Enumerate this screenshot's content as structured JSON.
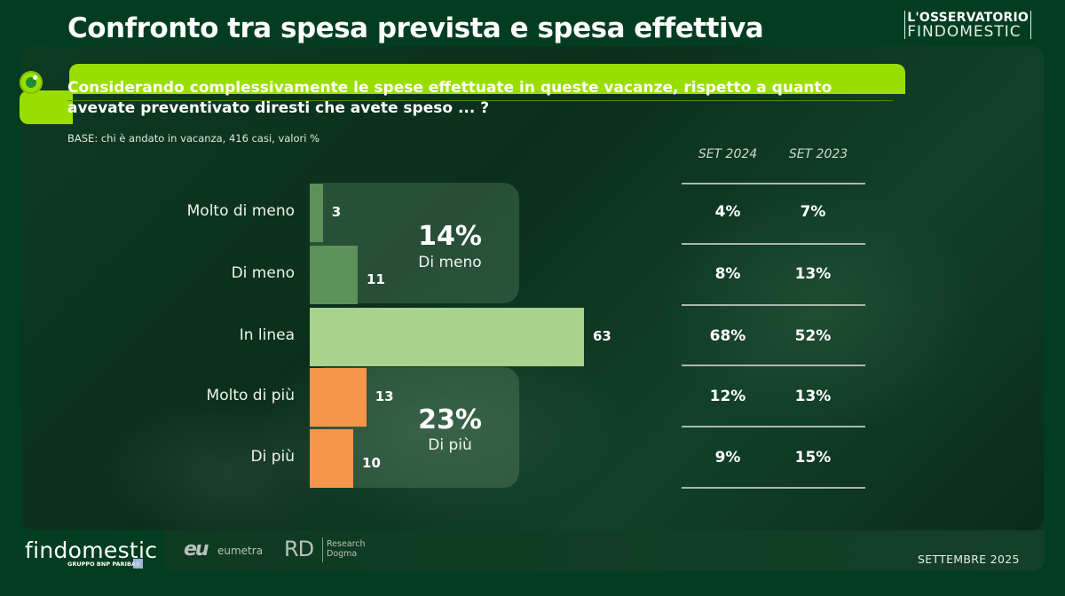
{
  "header": {
    "title": "Confronto tra spesa prevista e spesa effettiva",
    "brand_line1": "L'OSSERVATORIO",
    "brand_line2": "FINDOMESTIC"
  },
  "question": {
    "text": "Considerando complessivamente le spese effettuate in queste vacanze, rispetto a quanto avevate preventivato diresti che avete speso ... ?",
    "base": "BASE: chi è andato in vacanza, 416 casi, valori %"
  },
  "colors": {
    "less": "#5c9159",
    "inline": "#a9d28d",
    "more": "#f5964a",
    "accent": "#9ade00"
  },
  "chart_data": {
    "type": "bar",
    "orientation": "horizontal",
    "title": "Confronto tra spesa prevista e spesa effettiva",
    "categories": [
      "Molto di meno",
      "Di meno",
      "In linea",
      "Molto di più",
      "Di più"
    ],
    "values": [
      3,
      11,
      63,
      13,
      10
    ],
    "value_unit": "%",
    "groups": [
      {
        "label": "Di meno",
        "total": "14%",
        "categories": [
          "Molto di meno",
          "Di meno"
        ]
      },
      {
        "label": "Di più",
        "total": "23%",
        "categories": [
          "Molto di più",
          "Di più"
        ]
      }
    ],
    "comparison_table": {
      "columns": [
        "SET 2024",
        "SET 2023"
      ],
      "rows": [
        [
          "4%",
          "7%"
        ],
        [
          "8%",
          "13%"
        ],
        [
          "68%",
          "52%"
        ],
        [
          "12%",
          "13%"
        ],
        [
          "9%",
          "15%"
        ]
      ]
    },
    "xlabel": "",
    "ylabel": "",
    "xlim": [
      0,
      63
    ],
    "grid": false
  },
  "footer": {
    "logo_main": "findomestic",
    "logo_sub": "GRUPPO BNP PARIBAS",
    "logo_eu": "eu",
    "logo_eumetra": "eumetra",
    "logo_rd": "RD",
    "logo_rd_line1": "Research",
    "logo_rd_line2": "Dogma",
    "date": "SETTEMBRE 2025"
  }
}
